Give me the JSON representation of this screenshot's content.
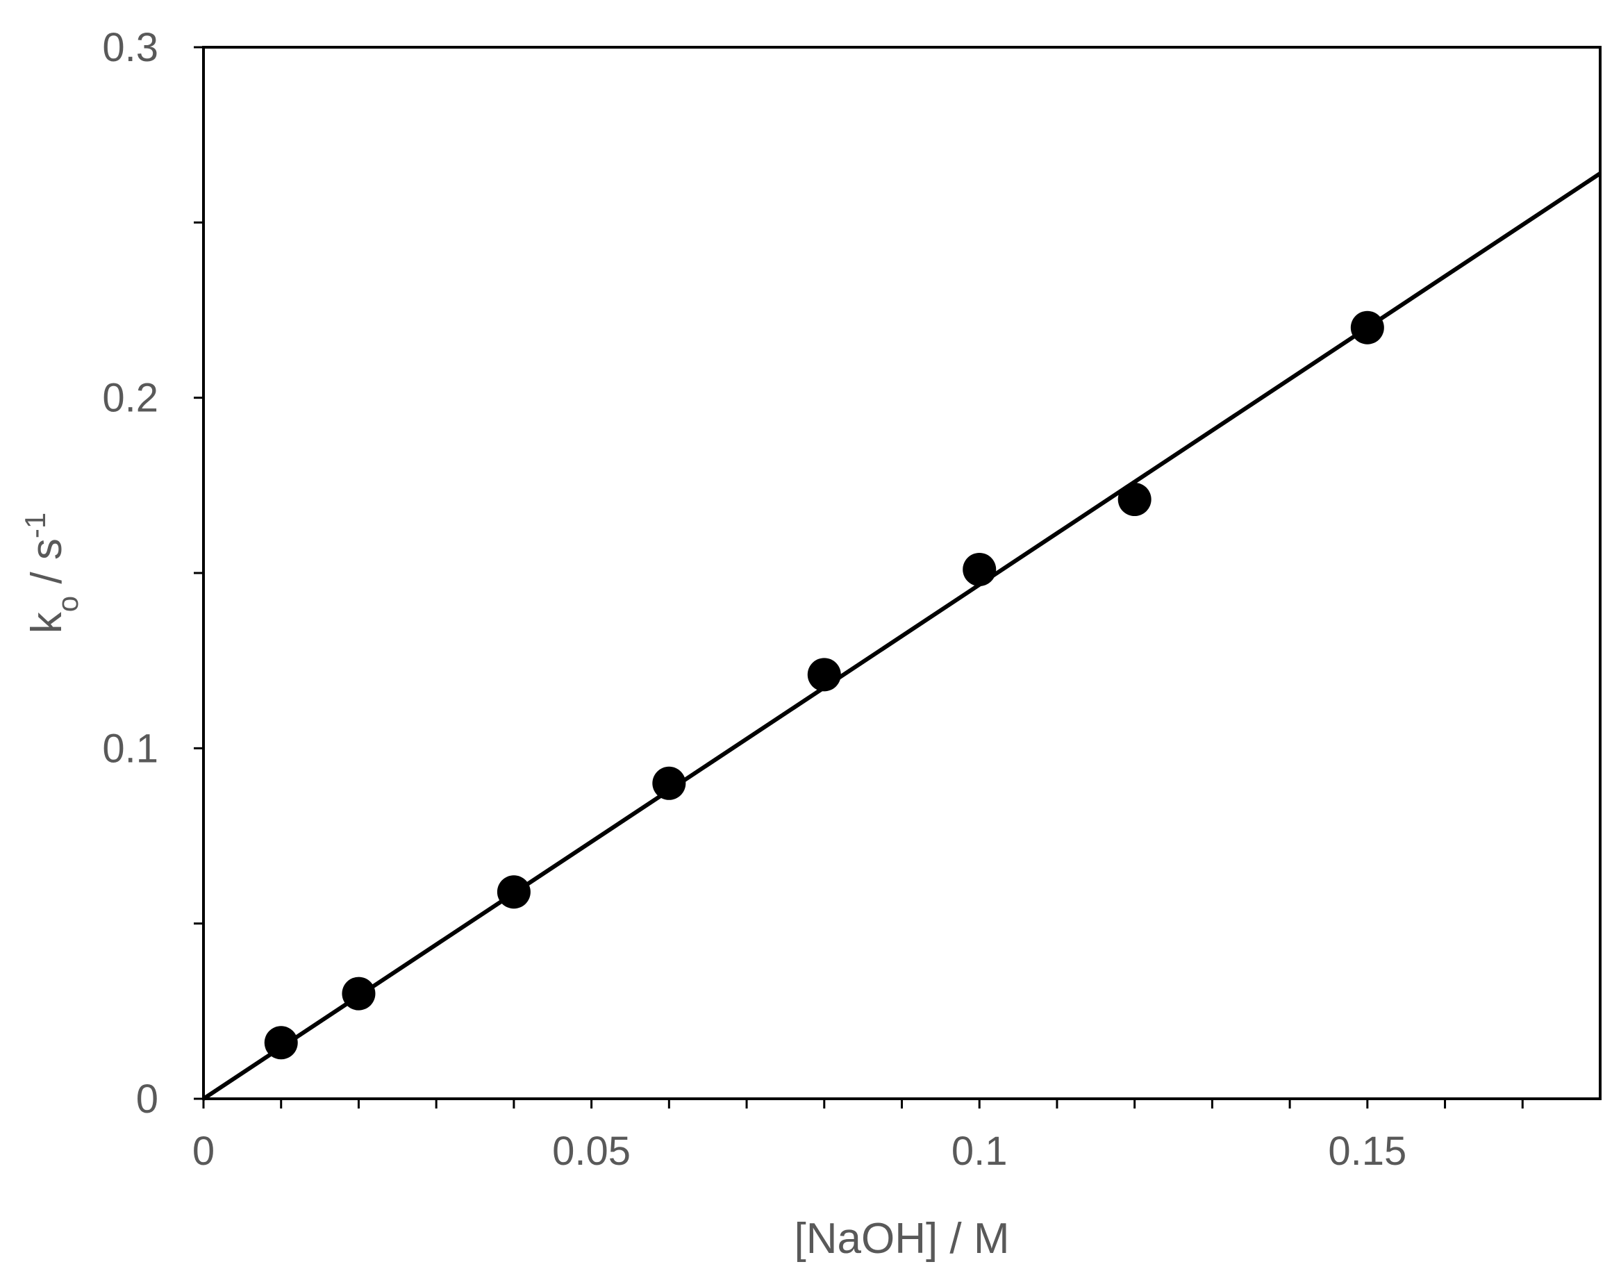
{
  "chart_data": {
    "type": "scatter",
    "title": "",
    "xlabel": "[NaOH] / M",
    "ylabel_main": "k",
    "ylabel_sub": "o",
    "ylabel_unit": " / s",
    "ylabel_sup": "-1",
    "xlim": [
      0,
      0.18
    ],
    "ylim": [
      0,
      0.3
    ],
    "x_major_ticks": [
      0,
      0.05,
      0.1,
      0.15
    ],
    "x_tick_labels": [
      "0",
      "0.05",
      "0.1",
      "0.15"
    ],
    "x_minor_ticks": [
      0.01,
      0.02,
      0.03,
      0.04,
      0.06,
      0.07,
      0.08,
      0.09,
      0.11,
      0.12,
      0.13,
      0.14,
      0.16,
      0.17
    ],
    "y_major_ticks": [
      0,
      0.1,
      0.2,
      0.3
    ],
    "y_tick_labels": [
      "0",
      "0.1",
      "0.2",
      "0.3"
    ],
    "y_minor_ticks": [
      0.05,
      0.15,
      0.25
    ],
    "grid": false,
    "legend": "none",
    "series": [
      {
        "x": [
          0.01,
          0.02,
          0.04,
          0.06,
          0.08,
          0.1,
          0.12,
          0.15
        ],
        "y": [
          0.016,
          0.03,
          0.059,
          0.09,
          0.121,
          0.151,
          0.171,
          0.22
        ],
        "marker": "filled-circle",
        "color": "#000000"
      }
    ],
    "fit_line": {
      "x": [
        0,
        0.18
      ],
      "y": [
        0,
        0.264
      ],
      "color": "#000000"
    }
  }
}
